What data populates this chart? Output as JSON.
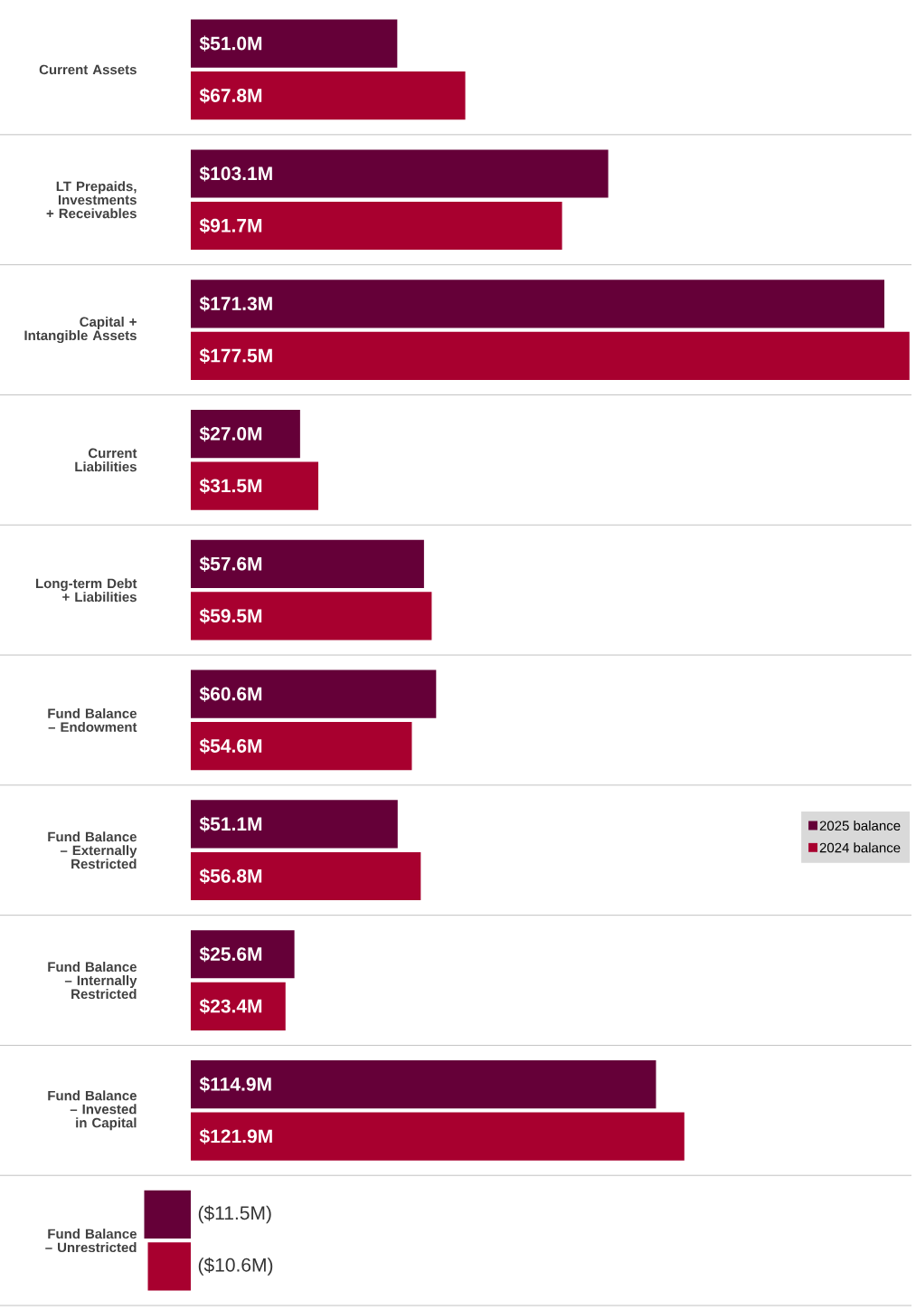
{
  "chart_data": {
    "type": "bar",
    "orientation": "horizontal",
    "legend": "right",
    "categories": [
      "Current Assets",
      "LT Prepaids, Investments + Receivables",
      "Capital + Intangible Assets",
      "Current Liabilities",
      "Long-term Debt + Liabilities",
      "Fund Balance – Endowment",
      "Fund Balance – Externally Restricted",
      "Fund Balance – Internally Restricted",
      "Fund Balance – Invested in Capital",
      "Fund Balance – Unrestricted"
    ],
    "series": [
      {
        "name": "2025 balance",
        "color": "#650038",
        "values": [
          51.0,
          103.1,
          171.3,
          27.0,
          57.6,
          60.6,
          51.1,
          25.6,
          114.9,
          -11.5
        ],
        "value_labels": [
          "$51.0M",
          "$103.1M",
          "$171.3M",
          "$27.0M",
          "$57.6M",
          "$60.6M",
          "$51.1M",
          "$25.6M",
          "$114.9M",
          "($11.5M)"
        ]
      },
      {
        "name": "2024 balance",
        "color": "#a8002f",
        "values": [
          67.8,
          91.7,
          177.5,
          31.5,
          59.5,
          54.6,
          56.8,
          23.4,
          121.9,
          -10.6
        ],
        "value_labels": [
          "$67.8M",
          "$91.7M",
          "$177.5M",
          "$31.5M",
          "$59.5M",
          "$54.6M",
          "$56.8M",
          "$23.4M",
          "$121.9M",
          "($10.6M)"
        ]
      }
    ]
  }
}
